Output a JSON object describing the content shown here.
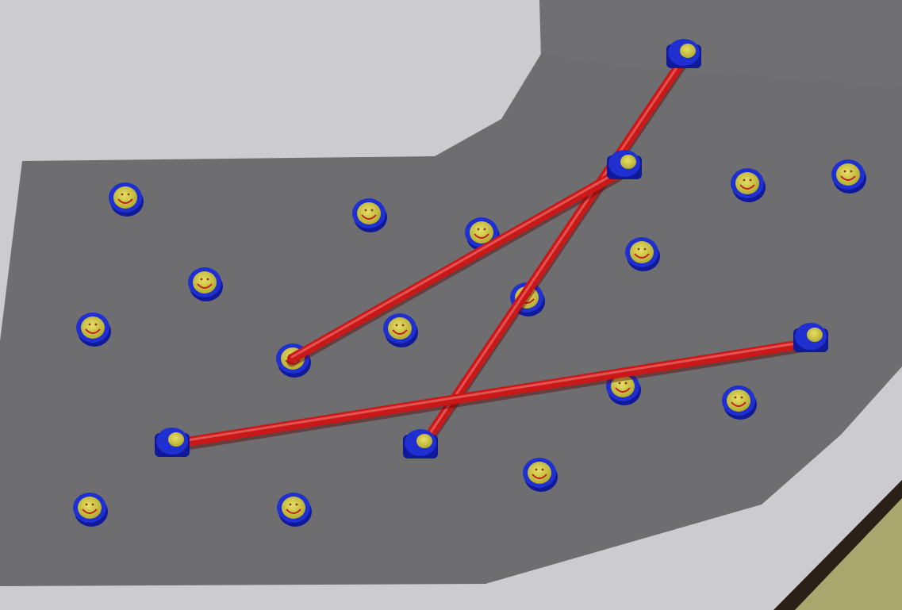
{
  "scene": {
    "name": "overhead-peg-board-scene",
    "colors": {
      "background": "#cccbcf",
      "board": "#6e6e70",
      "board_edge": "#8a8a8c",
      "wall_shadow": "#9c9ca0",
      "rod": "#d21a1a",
      "rod_highlight": "#f06a6a",
      "peg_rim": "#1f2fd0",
      "peg_rim_dark": "#10199a",
      "peg_face": "#c9c140",
      "peg_face_light": "#dcd65a",
      "peg_mouth": "#c02020",
      "corner_trim": "#2a2018",
      "corner_fill": "#a9a66e"
    },
    "peg_count": 20,
    "anchor_count": 6,
    "rod_count": 3
  }
}
